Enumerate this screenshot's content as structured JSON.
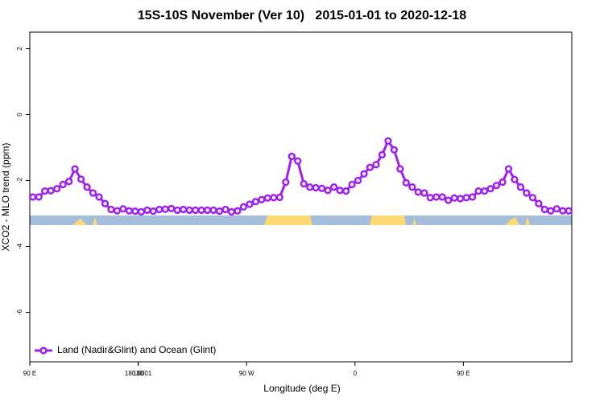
{
  "chart_data": {
    "type": "line",
    "title": "15S-10S November (Ver 10)   2015-01-01 to 2020-12-18",
    "x_label": "Longitude (deg E)",
    "y_label": "XCO2 - MLO trend (ppm)",
    "xlim": [
      90,
      540
    ],
    "xticks": [
      {
        "value": 90,
        "label": "90 E"
      },
      180,
      {
        "value": 270,
        "label": "90 W"
      },
      {
        "value": 360,
        "label": "0"
      },
      {
        "value": 450,
        "label": "90 E"
      },
      180.0001
    ],
    "ylim": [
      -7.5,
      2.5
    ],
    "yticks": [
      -6,
      -4,
      -2,
      0,
      2
    ],
    "legend": "bottom-left",
    "x": [
      92.5,
      97.5,
      102.5,
      107.5,
      112.5,
      117.5,
      122.5,
      127.5,
      132.5,
      137.5,
      142.5,
      147.5,
      152.5,
      157.5,
      162.5,
      167.5,
      172.5,
      177.5,
      182.5,
      187.5,
      192.5,
      197.5,
      202.5,
      207.5,
      212.5,
      217.5,
      222.5,
      227.5,
      232.5,
      237.5,
      242.5,
      247.5,
      252.5,
      257.5,
      262.5,
      267.5,
      272.5,
      277.5,
      282.5,
      287.5,
      292.5,
      297.5,
      302.5,
      307.5,
      312.5,
      317.5,
      322.5,
      327.5,
      332.5,
      337.5,
      342.5,
      347.5,
      352.5,
      357.5,
      362.5,
      367.5,
      372.5,
      377.5,
      382.5,
      387.5,
      392.5,
      397.5,
      402.5,
      407.5,
      412.5,
      417.5,
      422.5,
      427.5,
      432.5,
      437.5,
      442.5,
      447.5,
      452.5,
      457.5,
      462.5,
      467.5,
      472.5,
      477.5,
      482.5,
      487.5,
      492.5,
      497.5,
      502.5,
      507.5,
      512.5,
      517.5,
      522.5,
      527.5,
      532.5,
      537.5
    ],
    "series": [
      {
        "name": "Land (Nadir&Glint) and Ocean (Glint)",
        "color": "#a020f0",
        "values": [
          -2.5,
          -2.5,
          -2.32,
          -2.31,
          -2.25,
          -2.12,
          -2.03,
          -1.65,
          -1.96,
          -2.2,
          -2.38,
          -2.5,
          -2.7,
          -2.88,
          -2.92,
          -2.86,
          -2.92,
          -2.93,
          -2.95,
          -2.9,
          -2.93,
          -2.88,
          -2.87,
          -2.85,
          -2.9,
          -2.88,
          -2.9,
          -2.9,
          -2.9,
          -2.9,
          -2.9,
          -2.93,
          -2.88,
          -2.95,
          -2.92,
          -2.8,
          -2.72,
          -2.64,
          -2.58,
          -2.53,
          -2.52,
          -2.51,
          -2.05,
          -1.27,
          -1.41,
          -2.1,
          -2.2,
          -2.22,
          -2.24,
          -2.3,
          -2.2,
          -2.3,
          -2.32,
          -2.12,
          -2.0,
          -1.8,
          -1.6,
          -1.52,
          -1.22,
          -0.8,
          -1.07,
          -1.65,
          -2.07,
          -2.2,
          -2.35,
          -2.38,
          -2.52,
          -2.5,
          -2.5,
          -2.6,
          -2.53,
          -2.55,
          -2.52,
          -2.5,
          -2.32,
          -2.32,
          -2.25,
          -2.15,
          -2.05,
          -1.65,
          -1.97,
          -2.2,
          -2.38,
          -2.52,
          -2.7,
          -2.88,
          -2.92,
          -2.86,
          -2.92,
          -2.92
        ]
      }
    ]
  }
}
